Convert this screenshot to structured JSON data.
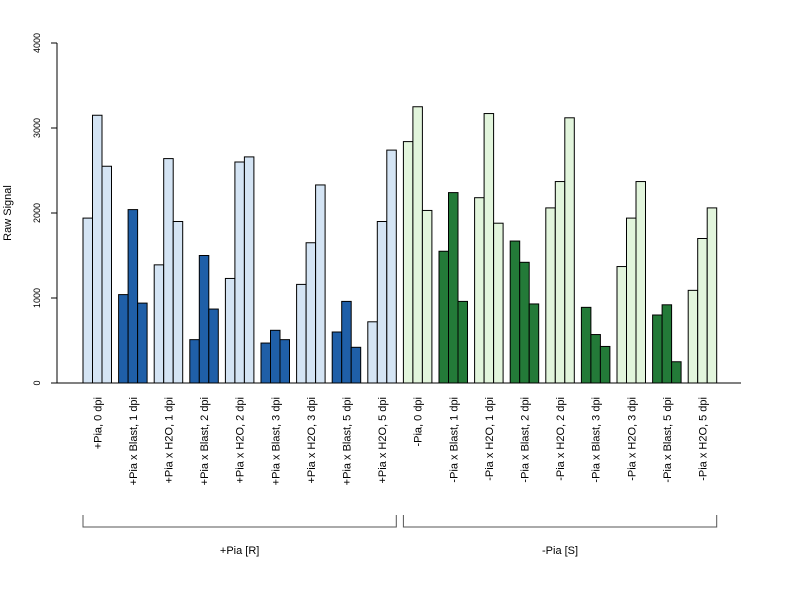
{
  "chart_data": {
    "type": "bar",
    "ylabel": "Raw Signal",
    "ylim": [
      0,
      4000
    ],
    "yticks": [
      0,
      1000,
      2000,
      3000,
      4000
    ],
    "categories": [
      "+Pia, 0 dpi",
      "+Pia x Blast, 1 dpi",
      "+Pia x H2O, 1 dpi",
      "+Pia x Blast, 2 dpi",
      "+Pia x H2O, 2 dpi",
      "+Pia x Blast, 3 dpi",
      "+Pia x H2O, 3 dpi",
      "+Pia x Blast, 5 dpi",
      "+Pia x H2O, 5 dpi",
      "-Pia, 0 dpi",
      "-Pia x Blast, 1 dpi",
      "-Pia x H2O, 1 dpi",
      "-Pia x Blast, 2 dpi",
      "-Pia x H2O, 2 dpi",
      "-Pia x Blast, 3 dpi",
      "-Pia x H2O, 3 dpi",
      "-Pia x Blast, 5 dpi",
      "-Pia x H2O, 5 dpi"
    ],
    "values": [
      [
        1940,
        3150,
        2550
      ],
      [
        1040,
        2040,
        940
      ],
      [
        1390,
        2640,
        1900
      ],
      [
        510,
        1500,
        870
      ],
      [
        1230,
        2600,
        2660
      ],
      [
        470,
        620,
        510
      ],
      [
        1160,
        1650,
        2330
      ],
      [
        600,
        960,
        420
      ],
      [
        720,
        1900,
        2740
      ],
      [
        2840,
        3250,
        2030
      ],
      [
        1550,
        2240,
        960
      ],
      [
        2180,
        3170,
        1880
      ],
      [
        1670,
        1420,
        930
      ],
      [
        2060,
        2370,
        3120
      ],
      [
        890,
        570,
        430
      ],
      [
        1370,
        1940,
        2370
      ],
      [
        800,
        920,
        250
      ],
      [
        1090,
        1700,
        2060
      ]
    ],
    "fills": [
      "light",
      "dark",
      "light",
      "dark",
      "light",
      "dark",
      "light",
      "dark",
      "light",
      "light",
      "dark",
      "light",
      "dark",
      "light",
      "dark",
      "light",
      "dark",
      "light"
    ],
    "groups": [
      {
        "label": "+Pia [R]",
        "from": 0,
        "to": 8
      },
      {
        "label": "-Pia [S]",
        "from": 9,
        "to": 17
      }
    ],
    "colors": {
      "plus_light": "#d4e4f4",
      "plus_dark": "#1f5fa8",
      "minus_light": "#e2f5dc",
      "minus_dark": "#237a38",
      "border": "#000000"
    },
    "grid": false
  }
}
